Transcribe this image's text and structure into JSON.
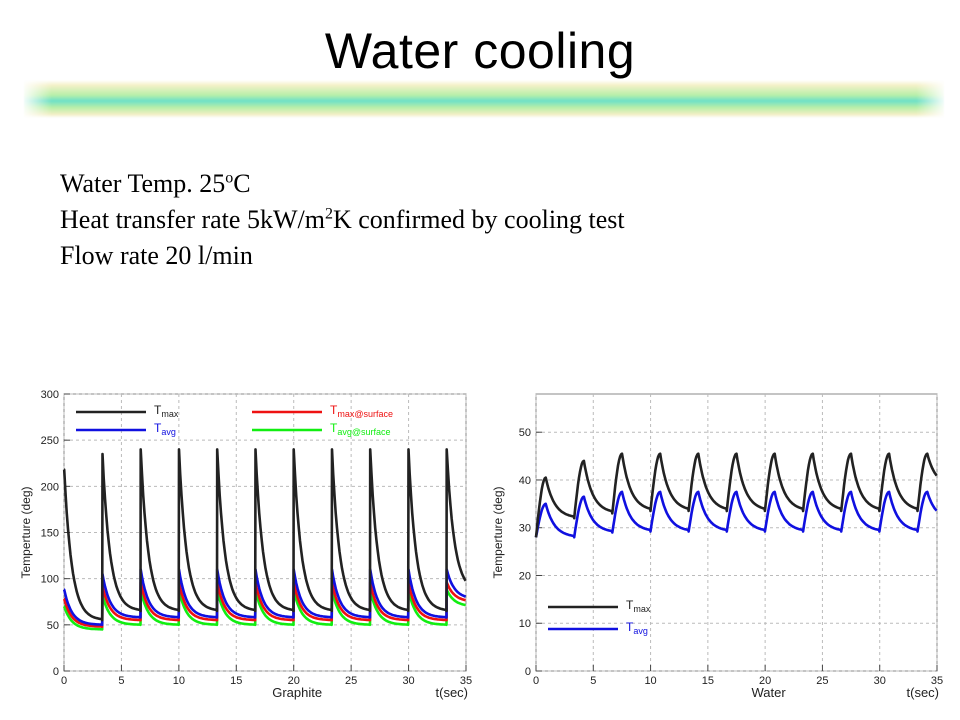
{
  "title": "Water cooling",
  "info": {
    "line1_prefix": "Water Temp. 25",
    "line1_sup": "o",
    "line1_suffix": "C",
    "line2_prefix": "Heat transfer rate 5kW/m",
    "line2_sup": "2",
    "line2_suffix": "K  confirmed by cooling test",
    "line3": "Flow rate  20 l/min"
  },
  "colors": {
    "black": "#222222",
    "blue": "#1010e0",
    "red": "#ee1111",
    "green": "#11ee11",
    "grid": "#bbbbbb"
  },
  "chart_data": [
    {
      "type": "line",
      "xlabel": "Graphite",
      "xunit": "t(sec)",
      "ylabel": "Temperture (deg)",
      "xlim": [
        0,
        35
      ],
      "ylim": [
        0,
        300
      ],
      "xticks": [
        0,
        5,
        10,
        15,
        20,
        25,
        30,
        35
      ],
      "yticks": [
        0,
        50,
        100,
        150,
        200,
        250,
        300
      ],
      "grid": true,
      "legend_position": "top",
      "pulse_period": 3.33,
      "series": [
        {
          "name": "T",
          "sub": "max",
          "color": "#222222",
          "peaks": [
            218,
            235,
            240,
            240,
            240,
            240,
            240,
            240,
            240,
            240,
            240
          ],
          "troughs": [
            55,
            65,
            65,
            65,
            65,
            65,
            65,
            65,
            65,
            65,
            65
          ],
          "end": 85
        },
        {
          "name": "T",
          "sub": "avg",
          "color": "#1010e0",
          "peaks": [
            88,
            105,
            110,
            110,
            110,
            110,
            110,
            110,
            110,
            110,
            110
          ],
          "troughs": [
            50,
            58,
            58,
            58,
            58,
            58,
            58,
            58,
            58,
            58,
            58
          ],
          "end": 78
        },
        {
          "name": "T",
          "sub": "max@surface",
          "color": "#ee1111",
          "peaks": [
            78,
            92,
            96,
            96,
            96,
            96,
            96,
            96,
            96,
            96,
            96
          ],
          "troughs": [
            48,
            55,
            55,
            55,
            55,
            55,
            55,
            55,
            55,
            55,
            55
          ],
          "end": 75
        },
        {
          "name": "T",
          "sub": "avg@surface",
          "color": "#11ee11",
          "peaks": [
            70,
            82,
            88,
            88,
            88,
            88,
            88,
            88,
            88,
            88,
            88
          ],
          "troughs": [
            45,
            50,
            50,
            50,
            50,
            50,
            50,
            50,
            50,
            50,
            50
          ],
          "end": 70
        }
      ]
    },
    {
      "type": "line",
      "xlabel": "Water",
      "xunit": "t(sec)",
      "ylabel": "Temperture (deg)",
      "xlim": [
        0,
        35
      ],
      "ylim": [
        0,
        58
      ],
      "xticks": [
        0,
        5,
        10,
        15,
        20,
        25,
        30,
        35
      ],
      "yticks": [
        0,
        10,
        20,
        30,
        40,
        50
      ],
      "grid": true,
      "legend_position": "bottom-left",
      "pulse_period": 3.33,
      "series": [
        {
          "name": "T",
          "sub": "max",
          "color": "#222222",
          "start": 28,
          "peaks": [
            40.5,
            44,
            45.5,
            45.5,
            45.5,
            45.5,
            45.5,
            45.5,
            45.5,
            45.5,
            45.5
          ],
          "troughs": [
            32,
            33,
            33.5,
            33.5,
            33.5,
            33.5,
            33.5,
            33.5,
            33.5,
            33.5,
            33.5
          ],
          "end": 38.5
        },
        {
          "name": "T",
          "sub": "avg",
          "color": "#1010e0",
          "start": 28,
          "peaks": [
            35,
            36.5,
            37.5,
            37.5,
            37.5,
            37.5,
            37.5,
            37.5,
            37.5,
            37.5,
            37.5
          ],
          "troughs": [
            28,
            29,
            29.2,
            29.2,
            29.2,
            29.2,
            29.2,
            29.2,
            29.2,
            29.2,
            29.2
          ],
          "end": 31.5
        }
      ]
    }
  ]
}
